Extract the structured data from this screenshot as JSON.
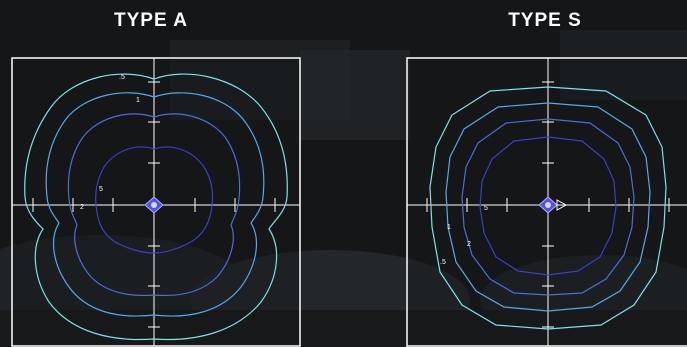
{
  "panels": [
    {
      "id": "type-a",
      "title": "TYPE A",
      "contour_labels": [
        ".5",
        "1",
        "5",
        "2"
      ]
    },
    {
      "id": "type-s",
      "title": "TYPE S",
      "contour_labels": [
        "1",
        "2",
        ".5",
        "5"
      ]
    }
  ],
  "colors": {
    "background": "#141618",
    "frame": "#ffffff",
    "contour_outer": "#7fe0e8",
    "contour_mid": "#59a6e8",
    "contour_inner": "#4a6ed8",
    "contour_core": "#3b3fc4",
    "luminaire": "#5a4fe0"
  },
  "icons": {
    "luminaire_a": "luminaire-marker-icon",
    "luminaire_s": "luminaire-marker-icon"
  }
}
